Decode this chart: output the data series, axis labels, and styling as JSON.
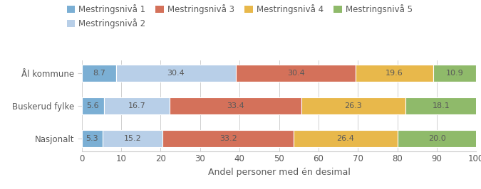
{
  "categories": [
    "Nasjonalt",
    "Buskerud fylke",
    "Ål kommune"
  ],
  "levels": [
    "Mestringsnivå 1",
    "Mestringsnivå 2",
    "Mestringsnivå 3",
    "Mestringsnivå 4",
    "Mestringsnivå 5"
  ],
  "colors": [
    "#7bafd4",
    "#b8cfe8",
    "#d4715a",
    "#e8b84b",
    "#8fba6a"
  ],
  "values": [
    [
      5.3,
      15.2,
      33.2,
      26.4,
      20.0
    ],
    [
      5.6,
      16.7,
      33.4,
      26.3,
      18.1
    ],
    [
      8.7,
      30.4,
      30.4,
      19.6,
      10.9
    ]
  ],
  "xlabel": "Andel personer med én desimal",
  "xlim": [
    0,
    100
  ],
  "xticks": [
    0,
    10,
    20,
    30,
    40,
    50,
    60,
    70,
    80,
    90,
    100
  ],
  "bar_height": 0.52,
  "background_color": "#ffffff",
  "grid_color": "#d0d0d0",
  "text_color": "#595959",
  "label_fontsize": 8.0,
  "tick_fontsize": 8.5,
  "legend_fontsize": 8.5,
  "xlabel_fontsize": 9.0
}
